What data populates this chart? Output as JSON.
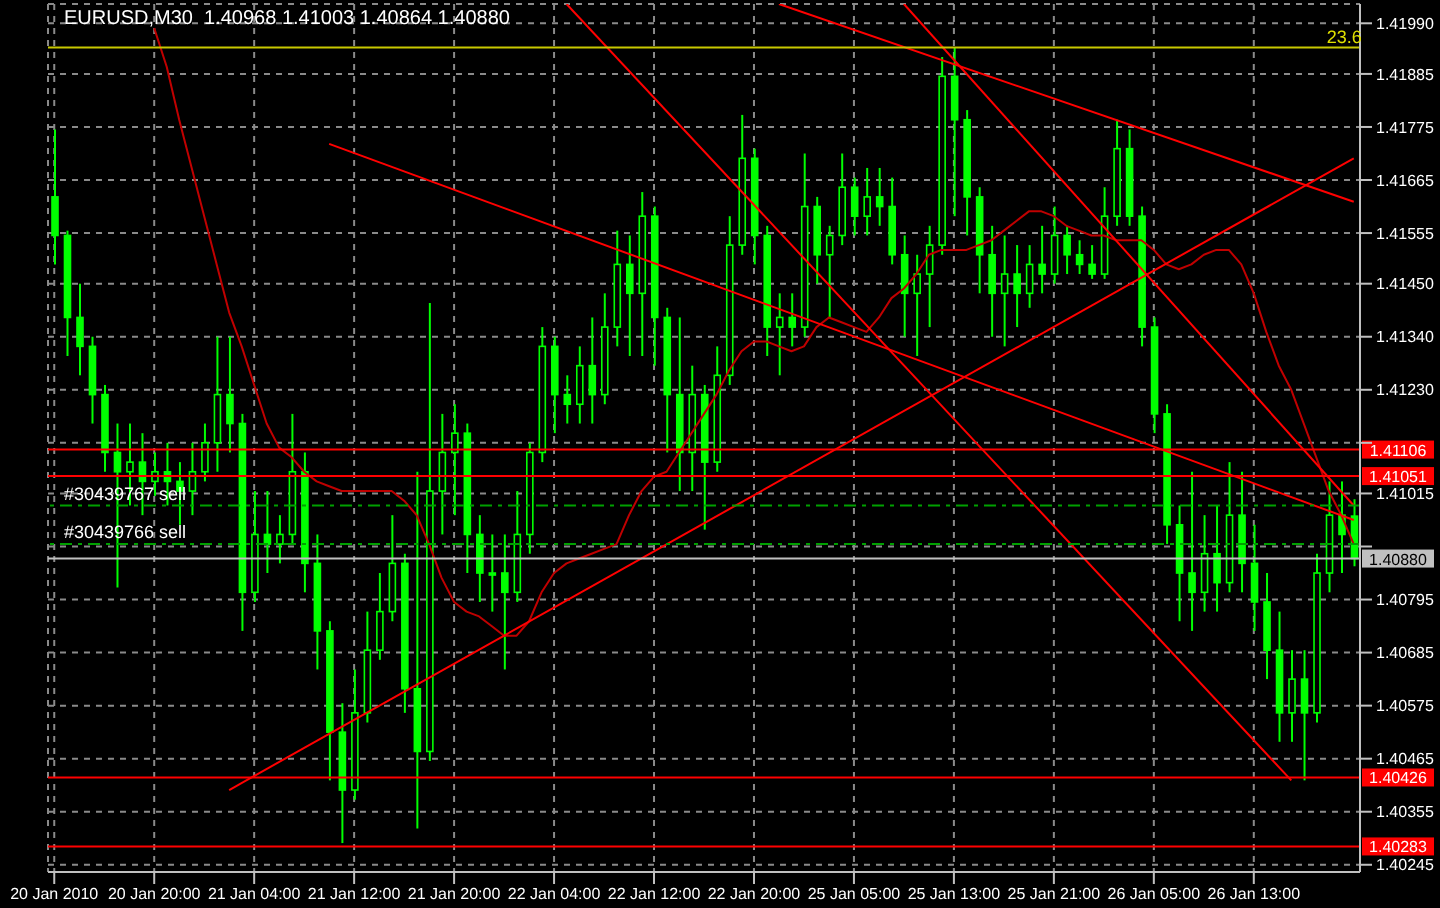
{
  "chart_data": {
    "type": "candlestick",
    "title": "EURUSD,M30  1.40968 1.41003 1.40864 1.40880",
    "color": "#00ff00",
    "categories": [
      "20 Jan 2010",
      null,
      null,
      null,
      null,
      null,
      null,
      null,
      "20 Jan 20:00",
      null,
      null,
      null,
      null,
      null,
      null,
      null,
      "21 Jan 04:00",
      null,
      null,
      null,
      null,
      null,
      null,
      null,
      "21 Jan 12:00",
      null,
      null,
      null,
      null,
      null,
      null,
      null,
      "21 Jan 20:00",
      null,
      null,
      null,
      null,
      null,
      null,
      null,
      "22 Jan 04:00",
      null,
      null,
      null,
      null,
      null,
      null,
      null,
      "22 Jan 12:00",
      null,
      null,
      null,
      null,
      null,
      null,
      null,
      "22 Jan 20:00",
      null,
      null,
      null,
      null,
      null,
      null,
      null,
      "25 Jan 05:00",
      null,
      null,
      null,
      null,
      null,
      null,
      null,
      "25 Jan 13:00",
      null,
      null,
      null,
      null,
      null,
      null,
      null,
      "25 Jan 21:00",
      null,
      null,
      null,
      null,
      null,
      null,
      null,
      "26 Jan 05:00",
      null,
      null,
      null,
      null,
      null,
      null,
      null,
      "26 Jan 13:00",
      null,
      null,
      null,
      null,
      null,
      null,
      null,
      null
    ],
    "ohlc": [
      [
        1.4163,
        1.4177,
        1.4149,
        1.4155
      ],
      [
        1.4155,
        1.4156,
        1.413,
        1.4138
      ],
      [
        1.4138,
        1.4145,
        1.4126,
        1.4132
      ],
      [
        1.4132,
        1.4134,
        1.4116,
        1.4122
      ],
      [
        1.4122,
        1.4124,
        1.4106,
        1.411
      ],
      [
        1.411,
        1.4116,
        1.4082,
        1.4106
      ],
      [
        1.4106,
        1.4116,
        1.4099,
        1.4108
      ],
      [
        1.4108,
        1.4114,
        1.4097,
        1.4104
      ],
      [
        1.4104,
        1.411,
        1.4101,
        1.4106
      ],
      [
        1.4106,
        1.4112,
        1.4099,
        1.4104
      ],
      [
        1.4104,
        1.4108,
        1.4095,
        1.4102
      ],
      [
        1.4102,
        1.4112,
        1.4097,
        1.4106
      ],
      [
        1.4106,
        1.4116,
        1.4104,
        1.4112
      ],
      [
        1.4112,
        1.4134,
        1.4106,
        1.4122
      ],
      [
        1.4122,
        1.4134,
        1.411,
        1.4116
      ],
      [
        1.4116,
        1.4118,
        1.4073,
        1.4081
      ],
      [
        1.4081,
        1.4102,
        1.4079,
        1.4093
      ],
      [
        1.4093,
        1.4102,
        1.4085,
        1.4091
      ],
      [
        1.4091,
        1.4097,
        1.4087,
        1.4093
      ],
      [
        1.4093,
        1.4118,
        1.4091,
        1.4106
      ],
      [
        1.4106,
        1.411,
        1.4081,
        1.4087
      ],
      [
        1.4087,
        1.4093,
        1.4065,
        1.4073
      ],
      [
        1.4073,
        1.4075,
        1.4042,
        1.4052
      ],
      [
        1.4052,
        1.4058,
        1.4029,
        1.404
      ],
      [
        1.404,
        1.4065,
        1.4038,
        1.4056
      ],
      [
        1.4056,
        1.4077,
        1.4054,
        1.4069
      ],
      [
        1.4069,
        1.4085,
        1.4067,
        1.4077
      ],
      [
        1.4077,
        1.4097,
        1.4075,
        1.4087
      ],
      [
        1.4087,
        1.4089,
        1.4056,
        1.4061
      ],
      [
        1.4061,
        1.4106,
        1.4032,
        1.4048
      ],
      [
        1.4048,
        1.4141,
        1.4046,
        1.4102
      ],
      [
        1.4102,
        1.4118,
        1.4093,
        1.411
      ],
      [
        1.411,
        1.412,
        1.4097,
        1.4114
      ],
      [
        1.4114,
        1.4116,
        1.4085,
        1.4093
      ],
      [
        1.4093,
        1.4097,
        1.4079,
        1.4085
      ],
      [
        1.4085,
        1.4093,
        1.4077,
        1.4085
      ],
      [
        1.4085,
        1.4093,
        1.4065,
        1.4081
      ],
      [
        1.4081,
        1.4102,
        1.4079,
        1.4093
      ],
      [
        1.4093,
        1.4112,
        1.4089,
        1.411
      ],
      [
        1.411,
        1.4136,
        1.4108,
        1.4132
      ],
      [
        1.4132,
        1.4134,
        1.4114,
        1.4122
      ],
      [
        1.4122,
        1.4126,
        1.4116,
        1.412
      ],
      [
        1.412,
        1.4132,
        1.4116,
        1.4128
      ],
      [
        1.4128,
        1.4138,
        1.4116,
        1.4122
      ],
      [
        1.4122,
        1.4143,
        1.412,
        1.4136
      ],
      [
        1.4136,
        1.4156,
        1.4132,
        1.4149
      ],
      [
        1.4149,
        1.4155,
        1.413,
        1.4143
      ],
      [
        1.4143,
        1.4164,
        1.413,
        1.4159
      ],
      [
        1.4159,
        1.4161,
        1.4128,
        1.4138
      ],
      [
        1.4138,
        1.414,
        1.411,
        1.4122
      ],
      [
        1.4122,
        1.4138,
        1.4102,
        1.411
      ],
      [
        1.411,
        1.4128,
        1.4102,
        1.4122
      ],
      [
        1.4122,
        1.4124,
        1.4094,
        1.4108
      ],
      [
        1.4108,
        1.4132,
        1.4106,
        1.4126
      ],
      [
        1.4126,
        1.4159,
        1.4124,
        1.4153
      ],
      [
        1.4153,
        1.418,
        1.4151,
        1.4171
      ],
      [
        1.4171,
        1.4173,
        1.4149,
        1.4155
      ],
      [
        1.4155,
        1.4157,
        1.413,
        1.4136
      ],
      [
        1.4136,
        1.4143,
        1.4126,
        1.4138
      ],
      [
        1.4138,
        1.4143,
        1.4132,
        1.4136
      ],
      [
        1.4136,
        1.4172,
        1.4134,
        1.4161
      ],
      [
        1.4161,
        1.4163,
        1.4145,
        1.4151
      ],
      [
        1.4151,
        1.4157,
        1.4138,
        1.4155
      ],
      [
        1.4155,
        1.4172,
        1.4153,
        1.4165
      ],
      [
        1.4165,
        1.4167,
        1.4155,
        1.4159
      ],
      [
        1.4159,
        1.4169,
        1.4155,
        1.4163
      ],
      [
        1.4163,
        1.4169,
        1.4157,
        1.4161
      ],
      [
        1.4161,
        1.4167,
        1.4149,
        1.4151
      ],
      [
        1.4151,
        1.4155,
        1.4134,
        1.4143
      ],
      [
        1.4143,
        1.4151,
        1.413,
        1.4147
      ],
      [
        1.4147,
        1.4157,
        1.4136,
        1.4153
      ],
      [
        1.4153,
        1.4192,
        1.4151,
        1.4188
      ],
      [
        1.4188,
        1.4194,
        1.4159,
        1.4179
      ],
      [
        1.4179,
        1.4181,
        1.4155,
        1.4163
      ],
      [
        1.4163,
        1.4165,
        1.4143,
        1.4151
      ],
      [
        1.4151,
        1.4157,
        1.4134,
        1.4143
      ],
      [
        1.4143,
        1.4155,
        1.4132,
        1.4147
      ],
      [
        1.4147,
        1.4153,
        1.4136,
        1.4143
      ],
      [
        1.4143,
        1.4153,
        1.414,
        1.4149
      ],
      [
        1.4149,
        1.4157,
        1.4143,
        1.4147
      ],
      [
        1.4147,
        1.4161,
        1.4145,
        1.4155
      ],
      [
        1.4155,
        1.4157,
        1.4147,
        1.4151
      ],
      [
        1.4151,
        1.4154,
        1.4147,
        1.4149
      ],
      [
        1.4149,
        1.4153,
        1.4146,
        1.4147
      ],
      [
        1.4147,
        1.4165,
        1.4146,
        1.4159
      ],
      [
        1.4159,
        1.4179,
        1.4157,
        1.4173
      ],
      [
        1.4173,
        1.4177,
        1.4157,
        1.4159
      ],
      [
        1.4159,
        1.4161,
        1.4132,
        1.4136
      ],
      [
        1.4136,
        1.4138,
        1.4114,
        1.4118
      ],
      [
        1.4118,
        1.412,
        1.4091,
        1.4095
      ],
      [
        1.4095,
        1.4099,
        1.4075,
        1.4085
      ],
      [
        1.4085,
        1.4106,
        1.4073,
        1.4081
      ],
      [
        1.4081,
        1.4097,
        1.4077,
        1.4089
      ],
      [
        1.4089,
        1.4099,
        1.4077,
        1.4083
      ],
      [
        1.4083,
        1.4108,
        1.4081,
        1.4097
      ],
      [
        1.4097,
        1.4106,
        1.4081,
        1.4087
      ],
      [
        1.4087,
        1.4095,
        1.4073,
        1.4079
      ],
      [
        1.4079,
        1.4085,
        1.4063,
        1.4069
      ],
      [
        1.4069,
        1.4077,
        1.405,
        1.4056
      ],
      [
        1.4056,
        1.4069,
        1.405,
        1.4063
      ],
      [
        1.4063,
        1.4069,
        1.4042,
        1.4056
      ],
      [
        1.4056,
        1.4089,
        1.4054,
        1.4085
      ],
      [
        1.4085,
        1.4104,
        1.4081,
        1.4097
      ],
      [
        1.4097,
        1.4104,
        1.4085,
        1.4093
      ],
      [
        1.40968,
        1.41003,
        1.40864,
        1.4088
      ]
    ],
    "series": [
      {
        "type": "line",
        "color": "#c00000",
        "values": [
          null,
          null,
          null,
          null,
          null,
          null,
          null,
          null,
          1.4198,
          1.419,
          1.4179,
          1.4169,
          1.4159,
          1.4149,
          1.4139,
          1.4132,
          1.4124,
          1.4116,
          1.4111,
          1.4109,
          1.4106,
          1.4104,
          1.4103,
          1.4102,
          1.4102,
          1.4102,
          1.4102,
          1.4102,
          1.41,
          1.4097,
          1.4091,
          1.4084,
          1.4079,
          1.4077,
          1.4076,
          1.4074,
          1.4072,
          1.4072,
          1.4075,
          1.4081,
          1.4085,
          1.4087,
          1.4088,
          1.4089,
          1.409,
          1.4091,
          1.4097,
          1.4102,
          1.4105,
          1.4106,
          1.411,
          1.4114,
          1.4118,
          1.4122,
          1.4127,
          1.4131,
          1.4133,
          1.4133,
          1.4132,
          1.4131,
          1.4132,
          1.4136,
          1.4138,
          1.4137,
          1.4136,
          1.4135,
          1.4138,
          1.4142,
          1.4144,
          1.4147,
          1.4151,
          1.4152,
          1.4152,
          1.4152,
          1.4153,
          1.4154,
          1.4156,
          1.4158,
          1.416,
          1.416,
          1.4159,
          1.4157,
          1.4156,
          1.4155,
          1.4155,
          1.4154,
          1.4154,
          1.4154,
          1.4152,
          1.4149,
          1.4148,
          1.4149,
          1.4151,
          1.4152,
          1.4152,
          1.4149,
          1.4143,
          1.4135,
          1.4128,
          1.4123,
          1.4116,
          1.4109,
          1.4102,
          1.4097,
          1.4091
        ]
      },
      {
        "type": "line",
        "color": "#ff0000",
        "values": [
          null,
          null,
          null,
          null,
          null,
          null,
          null,
          null,
          null,
          null,
          null,
          null,
          null,
          null,
          null,
          null,
          null,
          null,
          null,
          null,
          null,
          null,
          1.4174,
          null,
          null,
          null,
          null,
          null,
          null,
          null,
          null,
          null,
          null,
          null,
          null,
          null,
          null,
          null,
          null,
          null,
          null,
          null,
          null,
          null,
          null,
          null,
          null,
          null,
          null,
          null,
          null,
          null,
          null,
          null,
          null,
          null,
          null,
          null,
          null,
          null,
          null,
          null,
          null,
          null,
          null,
          null,
          null,
          null,
          null,
          null,
          null,
          null,
          null,
          null,
          null,
          null,
          null,
          null,
          null,
          null,
          null,
          null,
          null,
          null,
          null,
          null,
          null,
          null,
          null,
          null,
          null,
          null,
          null,
          null,
          null,
          null,
          null,
          null,
          null,
          null,
          null,
          null,
          null,
          null,
          1.4096
        ]
      },
      {
        "type": "line",
        "color": "#ff0000",
        "values": [
          null,
          null,
          null,
          null,
          null,
          null,
          null,
          null,
          null,
          null,
          null,
          null,
          null,
          null,
          null,
          null,
          null,
          null,
          null,
          null,
          null,
          null,
          null,
          null,
          null,
          null,
          null,
          null,
          null,
          null,
          null,
          null,
          null,
          null,
          null,
          null,
          null,
          null,
          null,
          null,
          null,
          1.4203,
          null,
          null,
          null,
          null,
          null,
          null,
          null,
          null,
          null,
          null,
          null,
          null,
          null,
          null,
          null,
          null,
          null,
          null,
          null,
          null,
          null,
          null,
          null,
          null,
          null,
          null,
          null,
          null,
          null,
          null,
          null,
          null,
          null,
          null,
          null,
          null,
          null,
          null,
          null,
          null,
          null,
          null,
          null,
          null,
          null,
          null,
          null,
          null,
          null,
          null,
          null,
          null,
          null,
          null,
          null,
          null,
          null,
          1.4042,
          null,
          null,
          null,
          null,
          null
        ]
      },
      {
        "type": "line",
        "color": "#ff0000",
        "values": [
          null,
          null,
          null,
          null,
          null,
          null,
          null,
          null,
          null,
          null,
          null,
          null,
          null,
          null,
          null,
          null,
          null,
          null,
          null,
          null,
          null,
          null,
          null,
          null,
          null,
          null,
          null,
          null,
          null,
          null,
          null,
          null,
          null,
          null,
          null,
          null,
          null,
          null,
          null,
          null,
          null,
          null,
          null,
          null,
          null,
          null,
          null,
          null,
          null,
          null,
          null,
          null,
          null,
          null,
          null,
          null,
          null,
          null,
          null,
          null,
          null,
          null,
          null,
          null,
          null,
          null,
          null,
          null,
          1.4203,
          null,
          null,
          null,
          null,
          null,
          null,
          null,
          null,
          null,
          null,
          null,
          null,
          null,
          null,
          null,
          null,
          null,
          null,
          null,
          null,
          null,
          null,
          null,
          null,
          null,
          null,
          null,
          null,
          null,
          null,
          null,
          null,
          null,
          null,
          null,
          1.4099
        ]
      },
      {
        "type": "line",
        "color": "#ff0000",
        "values": [
          null,
          null,
          null,
          null,
          null,
          null,
          null,
          null,
          null,
          null,
          null,
          null,
          null,
          null,
          null,
          null,
          null,
          null,
          null,
          null,
          null,
          null,
          null,
          null,
          null,
          null,
          null,
          null,
          null,
          null,
          null,
          null,
          null,
          null,
          null,
          null,
          null,
          null,
          null,
          null,
          null,
          null,
          null,
          null,
          null,
          null,
          null,
          null,
          null,
          null,
          null,
          null,
          null,
          null,
          null,
          null,
          null,
          null,
          1.4203,
          null,
          null,
          null,
          null,
          null,
          null,
          null,
          null,
          null,
          null,
          null,
          null,
          null,
          null,
          null,
          null,
          null,
          null,
          null,
          null,
          null,
          null,
          null,
          null,
          null,
          null,
          null,
          null,
          null,
          null,
          null,
          null,
          null,
          null,
          null,
          null,
          null,
          null,
          null,
          null,
          null,
          null,
          null,
          null,
          null,
          1.4162
        ]
      },
      {
        "type": "line",
        "color": "#ff0000",
        "values": [
          null,
          null,
          null,
          null,
          null,
          null,
          null,
          null,
          null,
          null,
          null,
          null,
          null,
          null,
          1.404,
          null,
          null,
          null,
          null,
          null,
          null,
          null,
          null,
          null,
          null,
          null,
          null,
          null,
          null,
          null,
          null,
          null,
          null,
          null,
          null,
          null,
          null,
          null,
          null,
          null,
          null,
          null,
          null,
          null,
          null,
          null,
          null,
          null,
          null,
          null,
          null,
          null,
          null,
          null,
          null,
          null,
          null,
          null,
          null,
          null,
          null,
          null,
          null,
          null,
          null,
          null,
          null,
          null,
          null,
          null,
          null,
          null,
          null,
          null,
          null,
          null,
          null,
          null,
          null,
          null,
          null,
          null,
          null,
          null,
          null,
          null,
          null,
          null,
          null,
          null,
          null,
          null,
          null,
          null,
          null,
          null,
          null,
          null,
          null,
          null,
          null,
          null,
          null,
          null,
          1.4171
        ]
      }
    ],
    "ylim": [
      1.4023,
      1.4203
    ],
    "yticks": [
      {
        "value": 1.4199,
        "label": "1.41990"
      },
      1.41885,
      1.41775,
      1.41665,
      1.41555,
      {
        "value": 1.4145,
        "label": "1.41450"
      },
      {
        "value": 1.4134,
        "label": "1.41340"
      },
      {
        "value": 1.4123,
        "label": "1.41230"
      },
      {
        "value": 1.4112,
        "label": null
      },
      1.41015,
      {
        "value": 1.40905,
        "label": null
      },
      1.40795,
      1.40685,
      1.40575,
      1.40465,
      1.40355,
      1.40245
    ],
    "grid": true,
    "annotations": [
      {
        "text": "23.6",
        "y": 1.4194
      }
    ],
    "ref_lines": [
      {
        "axis": "y",
        "value": 1.4194,
        "color": "#c8c800"
      },
      {
        "axis": "y",
        "value": 1.41106,
        "label": "1.41106",
        "color": "#ff0000"
      },
      {
        "axis": "y",
        "value": 1.41051,
        "label": "1.41051",
        "color": "#ff0000"
      },
      {
        "axis": "y",
        "value": 1.4099,
        "label": "#30439767 sell",
        "color": "#00a000",
        "line_style": "dashed"
      },
      {
        "axis": "y",
        "value": 1.4091,
        "label": "#30439766 sell",
        "color": "#00a000",
        "line_style": "dashed"
      },
      {
        "axis": "y",
        "value": 1.4088,
        "label": "1.40880",
        "color": "#c0c0c0"
      },
      {
        "axis": "y",
        "value": 1.40426,
        "label": "1.40426",
        "color": "#ff0000"
      },
      {
        "axis": "y",
        "value": 1.40283,
        "label": "1.40283",
        "color": "#ff0000"
      }
    ]
  }
}
